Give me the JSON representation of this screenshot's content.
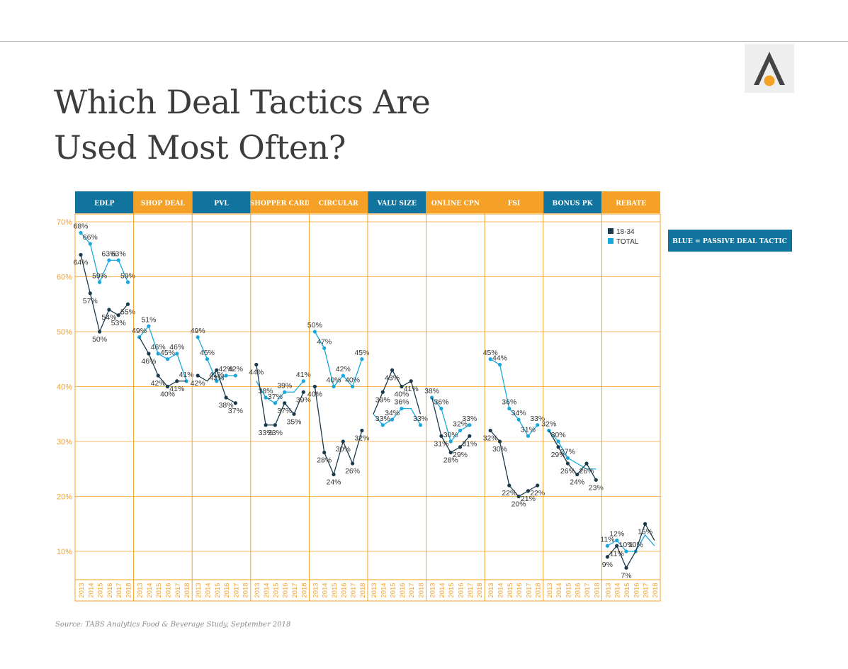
{
  "page": {
    "title_line1": "Which Deal Tactics Are",
    "title_line2": "Used Most Often?",
    "source": "Source: TABS Analytics Food & Beverage Study, September 2018",
    "note": "BLUE = PASSIVE DEAL TACTIC",
    "logo_icon": "aperture-a-logo-icon"
  },
  "colors": {
    "passive_blue": "#11749e",
    "active_orange": "#f5a127",
    "series_18_34": "#1b3a4b",
    "series_total": "#1aa7dc",
    "grid_orange": "#f5a127"
  },
  "chart_data": {
    "type": "line",
    "ylim": [
      4,
      72
    ],
    "yticks": [
      "70%",
      "60%",
      "50%",
      "40%",
      "30%",
      "20%",
      "10%"
    ],
    "ytick_values": [
      70,
      60,
      50,
      40,
      30,
      20,
      10
    ],
    "x": [
      "2013",
      "2014",
      "2015",
      "2016",
      "2017",
      "2018"
    ],
    "legend": [
      "18-34",
      "TOTAL"
    ],
    "legend_placement": "top-right",
    "grid": true,
    "groups": [
      {
        "label": "EDLP",
        "passive": true,
        "s1834": [
          64,
          57,
          50,
          54,
          53,
          55
        ],
        "total": [
          68,
          66,
          59,
          63,
          63,
          59
        ],
        "labels_1834": [
          "64%",
          "57%",
          "50%",
          "54%",
          "53%",
          "55%"
        ],
        "labels_total": [
          "68%",
          "66%",
          "59%",
          "63%",
          "63%",
          "59%"
        ]
      },
      {
        "label": "SHOP DEAL",
        "passive": false,
        "s1834": [
          49,
          46,
          42,
          40,
          41,
          41
        ],
        "total": [
          49,
          51,
          46,
          45,
          46,
          41
        ],
        "labels_1834": [
          "",
          "46%",
          "42%",
          "40%",
          "41%",
          ""
        ],
        "labels_total": [
          "49%",
          "51%",
          "46%",
          "45%",
          "46%",
          "41%"
        ]
      },
      {
        "label": "PVL",
        "passive": true,
        "s1834": [
          42,
          41,
          43,
          38,
          37,
          null
        ],
        "total": [
          49,
          45,
          41,
          42,
          42,
          null
        ],
        "labels_1834": [
          "42%",
          "",
          "43%",
          "38%",
          "37%",
          ""
        ],
        "labels_total": [
          "49%",
          "45%",
          "41%",
          "42%",
          "42%",
          ""
        ]
      },
      {
        "label": "SHOPPER CARD",
        "passive": false,
        "s1834": [
          44,
          33,
          33,
          37,
          35,
          39
        ],
        "total": [
          41,
          38,
          37,
          39,
          39,
          41
        ],
        "labels_1834": [
          "44%",
          "33%",
          "33%",
          "37%",
          "35%",
          "39%"
        ],
        "labels_total": [
          "",
          "38%",
          "37%",
          "39%",
          "",
          "41%"
        ]
      },
      {
        "label": "CIRCULAR",
        "passive": false,
        "s1834": [
          40,
          28,
          24,
          30,
          26,
          32
        ],
        "total": [
          50,
          47,
          40,
          42,
          40,
          45
        ],
        "labels_1834": [
          "40%",
          "28%",
          "24%",
          "30%",
          "26%",
          "32%"
        ],
        "labels_total": [
          "50%",
          "47%",
          "40%",
          "42%",
          "40%",
          "45%"
        ]
      },
      {
        "label": "VALU SIZE",
        "passive": true,
        "s1834": [
          35,
          39,
          43,
          40,
          41,
          35
        ],
        "total": [
          35,
          33,
          34,
          36,
          36,
          33
        ],
        "labels_1834": [
          "",
          "39%",
          "43%",
          "40%",
          "41%",
          ""
        ],
        "labels_total": [
          "",
          "33%",
          "34%",
          "36%",
          "",
          "33%"
        ]
      },
      {
        "label": "ONLINE CPN",
        "passive": false,
        "s1834": [
          38,
          31,
          28,
          29,
          31,
          null
        ],
        "total": [
          38,
          36,
          30,
          32,
          33,
          null
        ],
        "labels_1834": [
          "",
          "31%",
          "28%",
          "29%",
          "31%",
          ""
        ],
        "labels_total": [
          "38%",
          "36%",
          "30%",
          "32%",
          "33%",
          ""
        ]
      },
      {
        "label": "FSI",
        "passive": false,
        "s1834": [
          32,
          30,
          22,
          20,
          21,
          22
        ],
        "total": [
          45,
          44,
          36,
          34,
          31,
          33
        ],
        "labels_1834": [
          "32%",
          "30%",
          "22%",
          "20%",
          "21%",
          "22%"
        ],
        "labels_total": [
          "45%",
          "44%",
          "36%",
          "34%",
          "31%",
          "33%"
        ]
      },
      {
        "label": "BONUS PK",
        "passive": true,
        "s1834": [
          32,
          29,
          26,
          24,
          26,
          23
        ],
        "total": [
          32,
          30,
          27,
          26,
          25,
          25
        ],
        "labels_1834": [
          "",
          "29%",
          "26%",
          "24%",
          "26%",
          "23%"
        ],
        "labels_total": [
          "32%",
          "30%",
          "27%",
          "",
          "",
          ""
        ]
      },
      {
        "label": "REBATE",
        "passive": false,
        "s1834": [
          9,
          11,
          7,
          10,
          15,
          12
        ],
        "total": [
          11,
          12,
          10,
          10,
          13,
          11
        ],
        "labels_1834": [
          "9%",
          "11%",
          "7%",
          "",
          "15%",
          ""
        ],
        "labels_total": [
          "11%",
          "12%",
          "10%",
          "10%",
          "",
          ""
        ]
      }
    ]
  }
}
